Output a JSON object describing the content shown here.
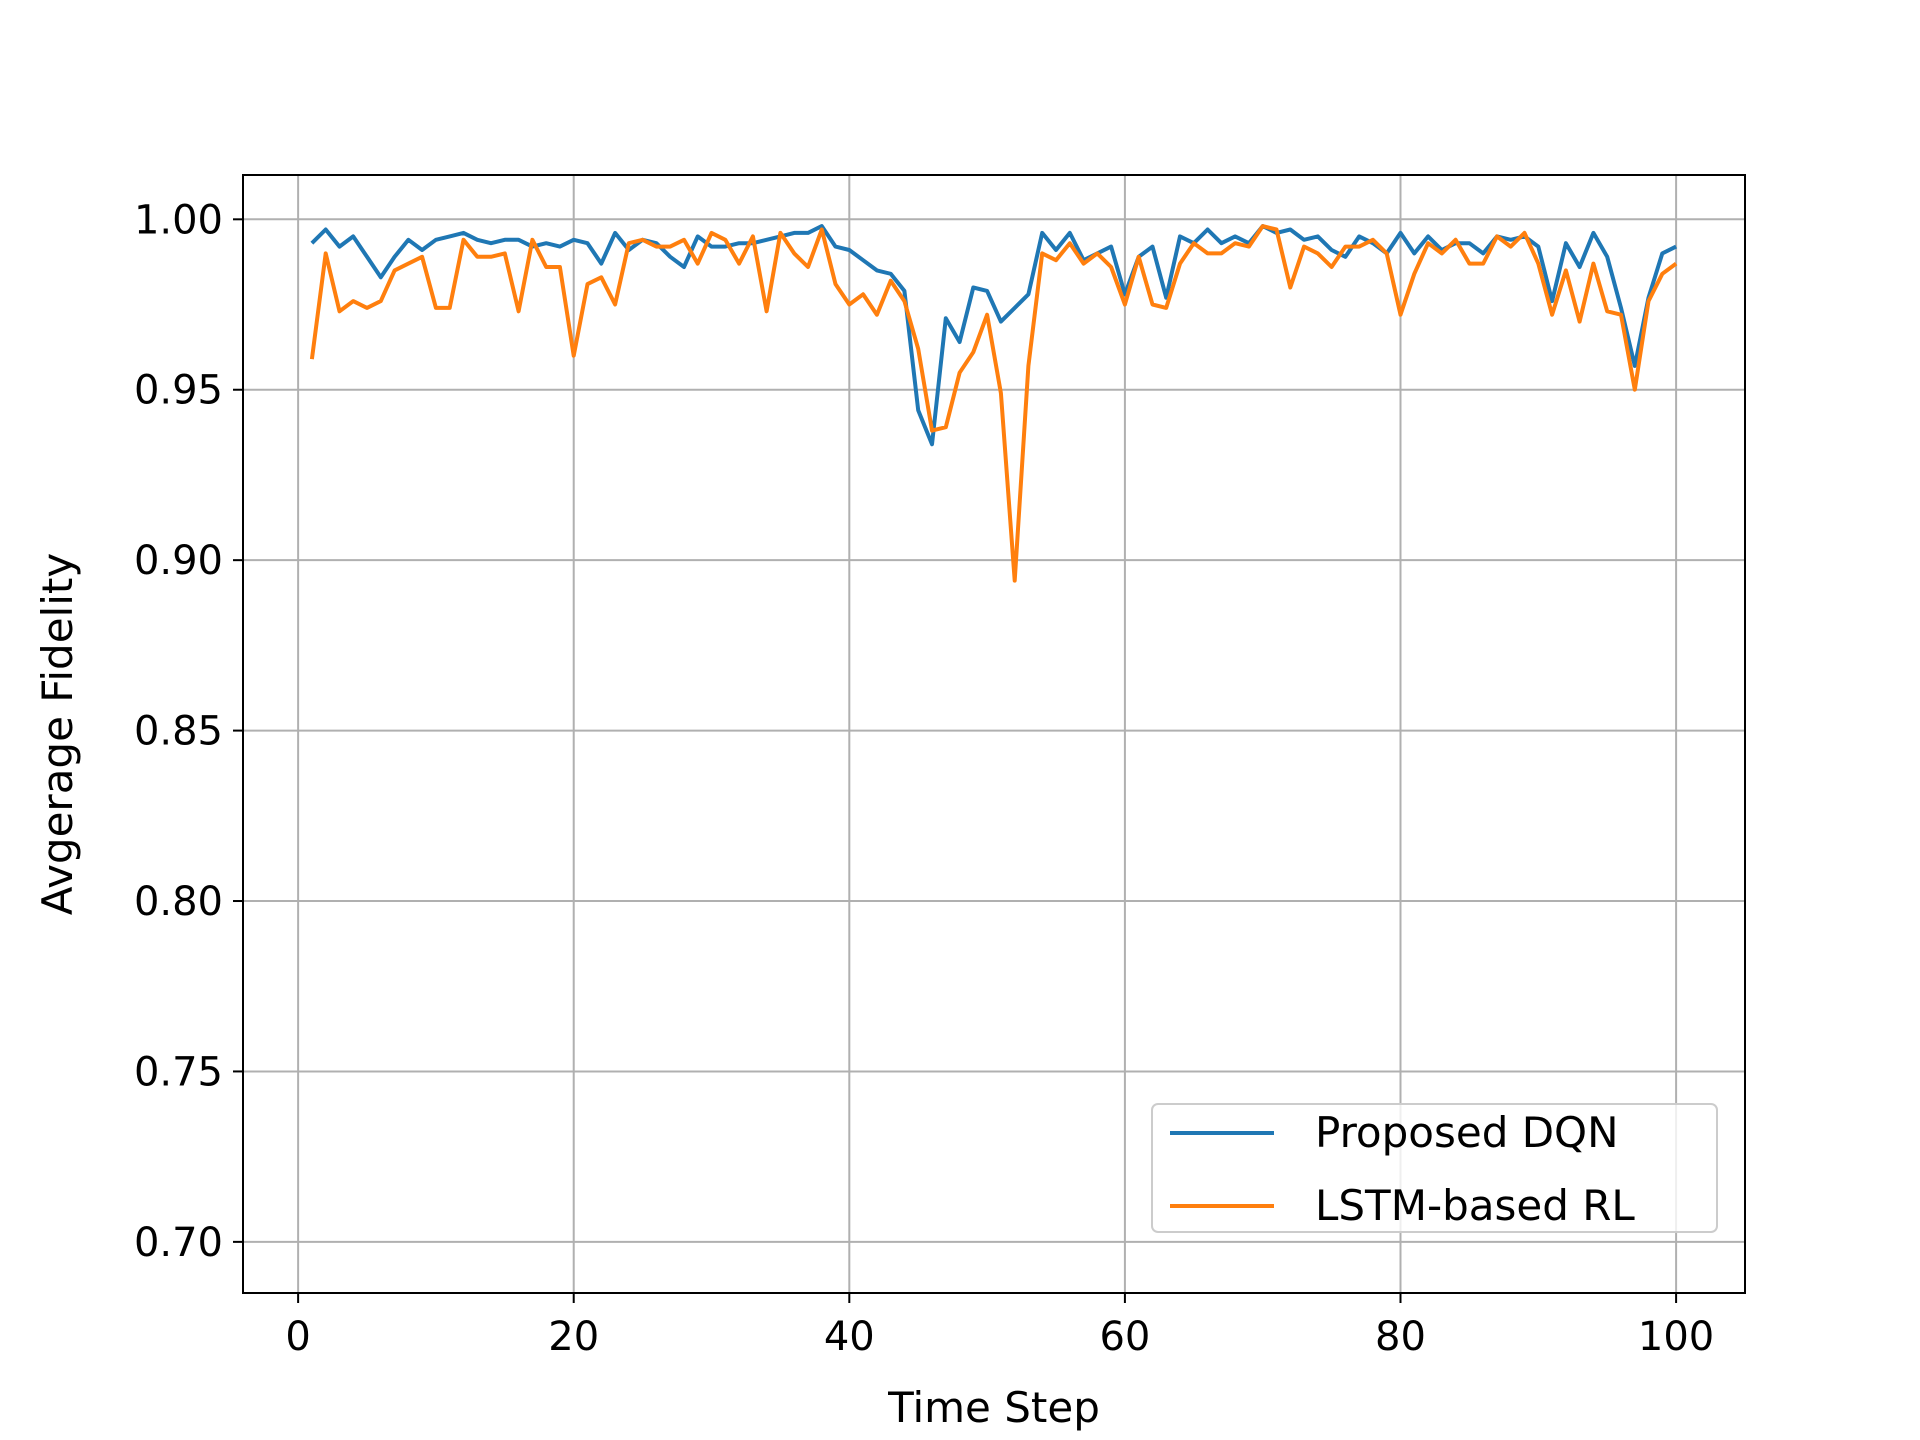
{
  "chart_data": {
    "type": "line",
    "title": "",
    "xlabel": "Time Step",
    "ylabel": "Avgerage Fidelity",
    "xlim": [
      -4,
      105
    ],
    "ylim": [
      0.685,
      1.013
    ],
    "xticks": [
      0,
      20,
      40,
      60,
      80,
      100
    ],
    "xtick_labels": [
      "0",
      "20",
      "40",
      "60",
      "80",
      "100"
    ],
    "yticks": [
      0.7,
      0.75,
      0.8,
      0.85,
      0.9,
      0.95,
      1.0
    ],
    "ytick_labels": [
      "0.70",
      "0.75",
      "0.80",
      "0.85",
      "0.90",
      "0.95",
      "1.00"
    ],
    "grid": true,
    "legend_position": "lower-right",
    "x": [
      1,
      2,
      3,
      4,
      5,
      6,
      7,
      8,
      9,
      10,
      11,
      12,
      13,
      14,
      15,
      16,
      17,
      18,
      19,
      20,
      21,
      22,
      23,
      24,
      25,
      26,
      27,
      28,
      29,
      30,
      31,
      32,
      33,
      34,
      35,
      36,
      37,
      38,
      39,
      40,
      41,
      42,
      43,
      44,
      45,
      46,
      47,
      48,
      49,
      50,
      51,
      52,
      53,
      54,
      55,
      56,
      57,
      58,
      59,
      60,
      61,
      62,
      63,
      64,
      65,
      66,
      67,
      68,
      69,
      70,
      71,
      72,
      73,
      74,
      75,
      76,
      77,
      78,
      79,
      80,
      81,
      82,
      83,
      84,
      85,
      86,
      87,
      88,
      89,
      90,
      91,
      92,
      93,
      94,
      95,
      96,
      97,
      98,
      99,
      100
    ],
    "series": [
      {
        "name": "Proposed DQN",
        "color": "#1f77b4",
        "values": [
          0.993,
          0.997,
          0.992,
          0.995,
          0.989,
          0.983,
          0.989,
          0.994,
          0.991,
          0.994,
          0.995,
          0.996,
          0.994,
          0.993,
          0.994,
          0.994,
          0.992,
          0.993,
          0.992,
          0.994,
          0.993,
          0.987,
          0.996,
          0.991,
          0.994,
          0.993,
          0.989,
          0.986,
          0.995,
          0.992,
          0.992,
          0.993,
          0.993,
          0.994,
          0.995,
          0.996,
          0.996,
          0.998,
          0.992,
          0.991,
          0.988,
          0.985,
          0.984,
          0.979,
          0.944,
          0.934,
          0.971,
          0.964,
          0.98,
          0.979,
          0.97,
          0.974,
          0.978,
          0.996,
          0.991,
          0.996,
          0.988,
          0.99,
          0.992,
          0.978,
          0.989,
          0.992,
          0.977,
          0.995,
          0.993,
          0.997,
          0.993,
          0.995,
          0.993,
          0.998,
          0.996,
          0.997,
          0.994,
          0.995,
          0.991,
          0.989,
          0.995,
          0.993,
          0.99,
          0.996,
          0.99,
          0.995,
          0.991,
          0.993,
          0.993,
          0.99,
          0.995,
          0.994,
          0.995,
          0.992,
          0.976,
          0.993,
          0.986,
          0.996,
          0.989,
          0.974,
          0.957,
          0.977,
          0.99,
          0.992
        ]
      },
      {
        "name": "LSTM-based RL",
        "color": "#ff7f0e",
        "values": [
          0.959,
          0.99,
          0.973,
          0.976,
          0.974,
          0.976,
          0.985,
          0.987,
          0.989,
          0.974,
          0.974,
          0.994,
          0.989,
          0.989,
          0.99,
          0.973,
          0.994,
          0.986,
          0.986,
          0.96,
          0.981,
          0.983,
          0.975,
          0.993,
          0.994,
          0.992,
          0.992,
          0.994,
          0.987,
          0.996,
          0.994,
          0.987,
          0.995,
          0.973,
          0.996,
          0.99,
          0.986,
          0.997,
          0.981,
          0.975,
          0.978,
          0.972,
          0.982,
          0.976,
          0.962,
          0.938,
          0.939,
          0.955,
          0.961,
          0.972,
          0.949,
          0.894,
          0.957,
          0.99,
          0.988,
          0.993,
          0.987,
          0.99,
          0.986,
          0.975,
          0.989,
          0.975,
          0.974,
          0.987,
          0.993,
          0.99,
          0.99,
          0.993,
          0.992,
          0.998,
          0.997,
          0.98,
          0.992,
          0.99,
          0.986,
          0.992,
          0.992,
          0.994,
          0.99,
          0.972,
          0.984,
          0.993,
          0.99,
          0.994,
          0.987,
          0.987,
          0.995,
          0.992,
          0.996,
          0.987,
          0.972,
          0.985,
          0.97,
          0.987,
          0.973,
          0.972,
          0.95,
          0.976,
          0.984,
          0.987
        ]
      }
    ]
  }
}
